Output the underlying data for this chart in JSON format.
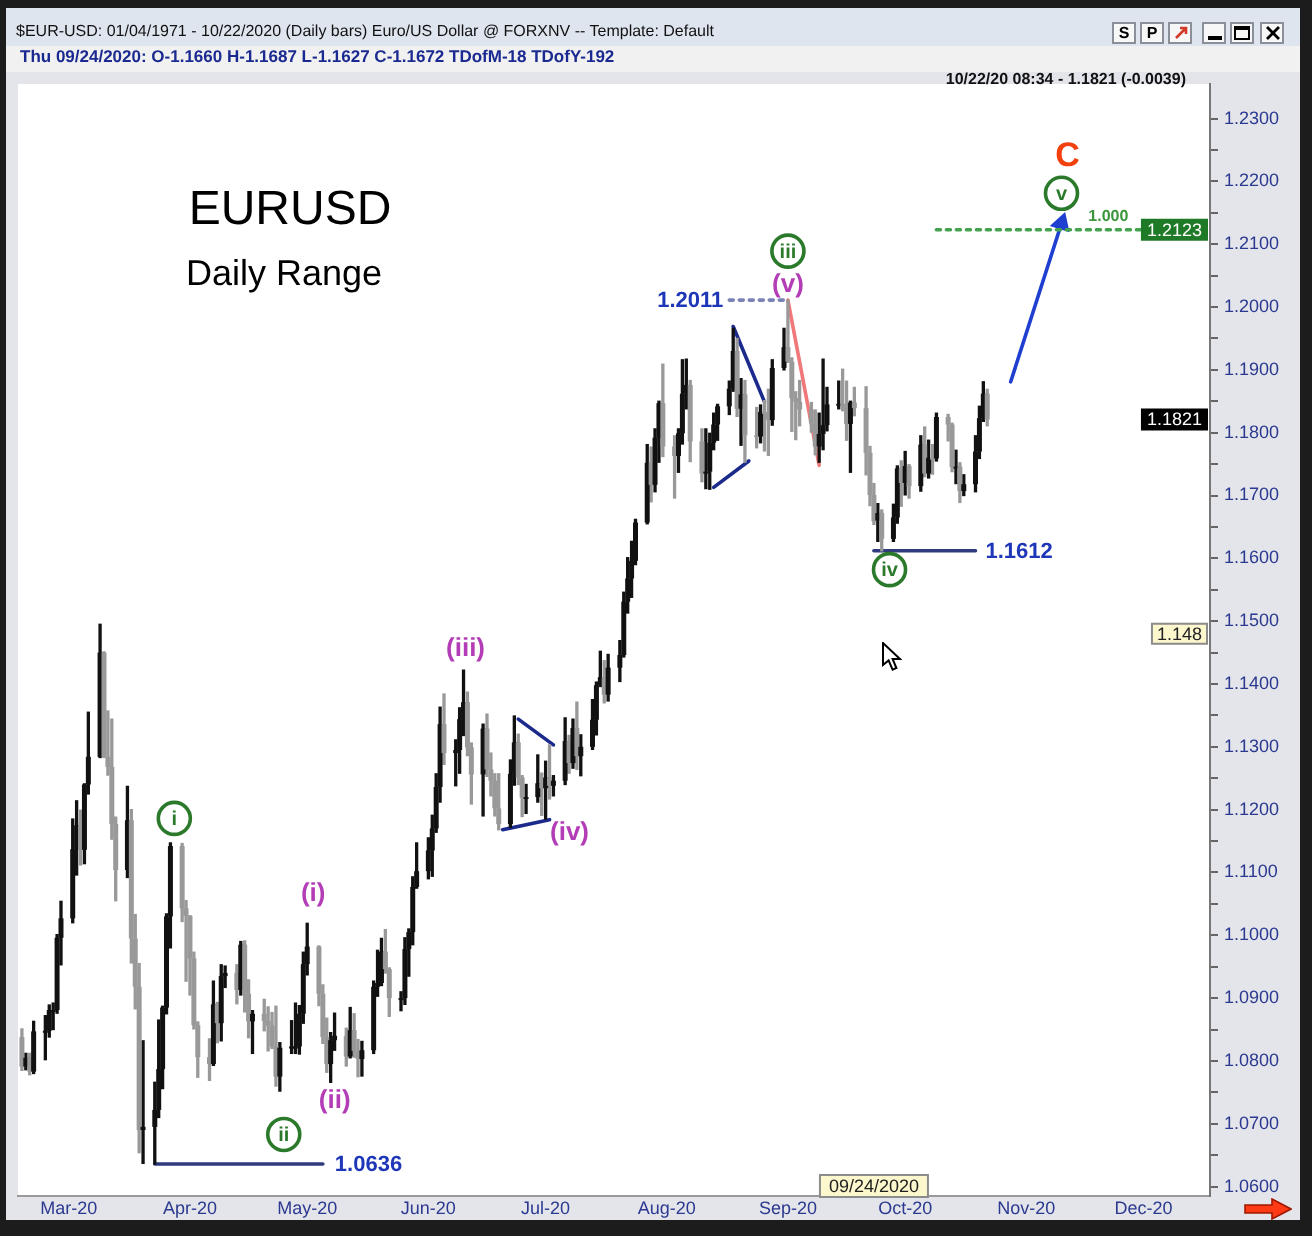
{
  "chart_data": {
    "type": "candlestick",
    "title": "EURUSD",
    "subtitle": "Daily Range",
    "x": [
      "2020-02-18",
      "2020-02-19",
      "2020-02-20",
      "2020-02-21",
      "2020-02-24",
      "2020-02-25",
      "2020-02-26",
      "2020-02-27",
      "2020-02-28",
      "2020-03-02",
      "2020-03-03",
      "2020-03-04",
      "2020-03-05",
      "2020-03-06",
      "2020-03-09",
      "2020-03-10",
      "2020-03-11",
      "2020-03-12",
      "2020-03-13",
      "2020-03-16",
      "2020-03-17",
      "2020-03-18",
      "2020-03-19",
      "2020-03-20",
      "2020-03-23",
      "2020-03-24",
      "2020-03-25",
      "2020-03-26",
      "2020-03-27",
      "2020-03-30",
      "2020-03-31",
      "2020-04-01",
      "2020-04-02",
      "2020-04-03",
      "2020-04-06",
      "2020-04-07",
      "2020-04-08",
      "2020-04-09",
      "2020-04-10",
      "2020-04-13",
      "2020-04-14",
      "2020-04-15",
      "2020-04-16",
      "2020-04-17",
      "2020-04-20",
      "2020-04-21",
      "2020-04-22",
      "2020-04-23",
      "2020-04-24",
      "2020-04-27",
      "2020-04-28",
      "2020-04-29",
      "2020-04-30",
      "2020-05-01",
      "2020-05-04",
      "2020-05-05",
      "2020-05-06",
      "2020-05-07",
      "2020-05-08",
      "2020-05-11",
      "2020-05-12",
      "2020-05-13",
      "2020-05-14",
      "2020-05-15",
      "2020-05-18",
      "2020-05-19",
      "2020-05-20",
      "2020-05-21",
      "2020-05-22",
      "2020-05-25",
      "2020-05-26",
      "2020-05-27",
      "2020-05-28",
      "2020-05-29",
      "2020-06-01",
      "2020-06-02",
      "2020-06-03",
      "2020-06-04",
      "2020-06-05",
      "2020-06-08",
      "2020-06-09",
      "2020-06-10",
      "2020-06-11",
      "2020-06-12",
      "2020-06-15",
      "2020-06-16",
      "2020-06-17",
      "2020-06-18",
      "2020-06-19",
      "2020-06-22",
      "2020-06-23",
      "2020-06-24",
      "2020-06-25",
      "2020-06-26",
      "2020-06-29",
      "2020-06-30",
      "2020-07-01",
      "2020-07-02",
      "2020-07-03",
      "2020-07-06",
      "2020-07-07",
      "2020-07-08",
      "2020-07-09",
      "2020-07-10",
      "2020-07-13",
      "2020-07-14",
      "2020-07-15",
      "2020-07-16",
      "2020-07-17",
      "2020-07-20",
      "2020-07-21",
      "2020-07-22",
      "2020-07-23",
      "2020-07-24",
      "2020-07-27",
      "2020-07-28",
      "2020-07-29",
      "2020-07-30",
      "2020-07-31",
      "2020-08-03",
      "2020-08-04",
      "2020-08-05",
      "2020-08-06",
      "2020-08-07",
      "2020-08-10",
      "2020-08-11",
      "2020-08-12",
      "2020-08-13",
      "2020-08-14",
      "2020-08-17",
      "2020-08-18",
      "2020-08-19",
      "2020-08-20",
      "2020-08-21",
      "2020-08-24",
      "2020-08-25",
      "2020-08-26",
      "2020-08-27",
      "2020-08-28",
      "2020-08-31",
      "2020-09-01",
      "2020-09-02",
      "2020-09-03",
      "2020-09-04",
      "2020-09-07",
      "2020-09-08",
      "2020-09-09",
      "2020-09-10",
      "2020-09-11",
      "2020-09-14",
      "2020-09-15",
      "2020-09-16",
      "2020-09-17",
      "2020-09-18",
      "2020-09-21",
      "2020-09-22",
      "2020-09-23",
      "2020-09-24",
      "2020-09-25",
      "2020-09-28",
      "2020-09-29",
      "2020-09-30",
      "2020-10-01",
      "2020-10-02",
      "2020-10-05",
      "2020-10-06",
      "2020-10-07",
      "2020-10-08",
      "2020-10-09",
      "2020-10-12",
      "2020-10-13",
      "2020-10-14",
      "2020-10-15",
      "2020-10-16",
      "2020-10-19",
      "2020-10-20",
      "2020-10-21",
      "2020-10-22"
    ],
    "ohlc": [
      [
        1.0838,
        1.0851,
        1.0785,
        1.0791
      ],
      [
        1.0791,
        1.0812,
        1.0786,
        1.0805
      ],
      [
        1.0805,
        1.0812,
        1.0778,
        1.0783
      ],
      [
        1.0783,
        1.0863,
        1.078,
        1.0847
      ],
      [
        1.0847,
        1.0872,
        1.0802,
        1.0848
      ],
      [
        1.0848,
        1.0889,
        1.0838,
        1.0881
      ],
      [
        1.0881,
        1.0892,
        1.085,
        1.0881
      ],
      [
        1.0881,
        1.1001,
        1.0876,
        1.0996
      ],
      [
        1.0996,
        1.1054,
        1.0953,
        1.1027
      ],
      [
        1.1027,
        1.1185,
        1.102,
        1.1137
      ],
      [
        1.1137,
        1.1214,
        1.1096,
        1.1175
      ],
      [
        1.1175,
        1.1199,
        1.1112,
        1.1136
      ],
      [
        1.1136,
        1.1241,
        1.1114,
        1.124
      ],
      [
        1.124,
        1.1355,
        1.1225,
        1.1284
      ],
      [
        1.1284,
        1.1495,
        1.1283,
        1.145
      ],
      [
        1.145,
        1.1451,
        1.1283,
        1.1284
      ],
      [
        1.1284,
        1.1357,
        1.1255,
        1.1268
      ],
      [
        1.1268,
        1.1344,
        1.1153,
        1.1177
      ],
      [
        1.1177,
        1.1188,
        1.1055,
        1.1104
      ],
      [
        1.1104,
        1.1237,
        1.1092,
        1.1183
      ],
      [
        1.1183,
        1.12,
        1.0956,
        1.0995
      ],
      [
        1.0995,
        1.1033,
        1.0883,
        1.0918
      ],
      [
        1.0918,
        1.0955,
        1.0654,
        1.069
      ],
      [
        1.069,
        1.0832,
        1.0637,
        1.0695
      ],
      [
        1.0695,
        1.0766,
        1.0636,
        1.0722
      ],
      [
        1.0722,
        1.0865,
        1.071,
        1.0787
      ],
      [
        1.0787,
        1.0887,
        1.0756,
        1.0885
      ],
      [
        1.0885,
        1.1034,
        1.0875,
        1.103
      ],
      [
        1.103,
        1.1147,
        1.098,
        1.1142
      ],
      [
        1.1142,
        1.1146,
        1.1022,
        1.1043
      ],
      [
        1.1043,
        1.1055,
        1.0927,
        1.1031
      ],
      [
        1.1031,
        1.1031,
        1.0905,
        1.0963
      ],
      [
        1.0963,
        1.0973,
        1.0851,
        1.0857
      ],
      [
        1.0857,
        1.0862,
        1.0774,
        1.0806
      ],
      [
        1.0806,
        1.0835,
        1.0769,
        1.0795
      ],
      [
        1.0795,
        1.0927,
        1.0793,
        1.089
      ],
      [
        1.089,
        1.0893,
        1.0829,
        1.086
      ],
      [
        1.086,
        1.0953,
        1.0832,
        1.0935
      ],
      [
        1.0935,
        1.0951,
        1.0917,
        1.094
      ],
      [
        1.094,
        1.0953,
        1.0891,
        1.0913
      ],
      [
        1.0913,
        1.099,
        1.0905,
        1.0985
      ],
      [
        1.0985,
        1.0991,
        1.0878,
        1.0907
      ],
      [
        1.0907,
        1.0929,
        1.0837,
        1.0863
      ],
      [
        1.0863,
        1.088,
        1.0812,
        1.0875
      ],
      [
        1.0875,
        1.0898,
        1.0848,
        1.0864
      ],
      [
        1.0864,
        1.0886,
        1.0816,
        1.0856
      ],
      [
        1.0856,
        1.0877,
        1.082,
        1.0823
      ],
      [
        1.0823,
        1.0887,
        1.076,
        1.0775
      ],
      [
        1.0775,
        1.0829,
        1.0752,
        1.0821
      ],
      [
        1.0821,
        1.0864,
        1.0812,
        1.0823
      ],
      [
        1.0823,
        1.0892,
        1.0812,
        1.0823
      ],
      [
        1.0823,
        1.0888,
        1.0811,
        1.0875
      ],
      [
        1.0875,
        1.0973,
        1.086,
        1.0954
      ],
      [
        1.0954,
        1.1019,
        1.0937,
        1.0982
      ],
      [
        1.0982,
        1.0983,
        1.0888,
        1.0907
      ],
      [
        1.0907,
        1.0921,
        1.0828,
        1.0838
      ],
      [
        1.0838,
        1.0868,
        1.0782,
        1.0795
      ],
      [
        1.0795,
        1.0845,
        1.0766,
        1.0833
      ],
      [
        1.0833,
        1.0876,
        1.0817,
        1.084
      ],
      [
        1.084,
        1.0852,
        1.0792,
        1.0807
      ],
      [
        1.0807,
        1.0885,
        1.0805,
        1.0849
      ],
      [
        1.0849,
        1.0875,
        1.0806,
        1.0816
      ],
      [
        1.0816,
        1.0834,
        1.0775,
        1.0803
      ],
      [
        1.0803,
        1.0831,
        1.0776,
        1.0817
      ],
      [
        1.0817,
        1.0927,
        1.0812,
        1.0918
      ],
      [
        1.0918,
        1.0976,
        1.0903,
        1.0924
      ],
      [
        1.0924,
        1.0995,
        1.092,
        1.0974
      ],
      [
        1.0974,
        1.1009,
        1.094,
        1.0946
      ],
      [
        1.0946,
        1.0948,
        1.0871,
        1.09
      ],
      [
        1.09,
        1.091,
        1.088,
        1.09
      ],
      [
        1.09,
        1.0996,
        1.089,
        1.0978
      ],
      [
        1.0978,
        1.101,
        1.0935,
        1.1005
      ],
      [
        1.1005,
        1.1093,
        1.0985,
        1.1077
      ],
      [
        1.1077,
        1.1147,
        1.1075,
        1.1102
      ],
      [
        1.1102,
        1.1155,
        1.109,
        1.1135
      ],
      [
        1.1135,
        1.1191,
        1.1094,
        1.117
      ],
      [
        1.117,
        1.1257,
        1.1164,
        1.1236
      ],
      [
        1.1236,
        1.1363,
        1.1212,
        1.1336
      ],
      [
        1.1336,
        1.1384,
        1.1272,
        1.129
      ],
      [
        1.129,
        1.1311,
        1.1238,
        1.1295
      ],
      [
        1.1295,
        1.1362,
        1.1258,
        1.1344
      ],
      [
        1.1344,
        1.1422,
        1.1318,
        1.1371
      ],
      [
        1.1371,
        1.1387,
        1.1286,
        1.1299
      ],
      [
        1.1299,
        1.1306,
        1.1209,
        1.1256
      ],
      [
        1.1256,
        1.1336,
        1.119,
        1.1329
      ],
      [
        1.1329,
        1.1352,
        1.1253,
        1.1264
      ],
      [
        1.1264,
        1.129,
        1.1222,
        1.1246
      ],
      [
        1.1246,
        1.1257,
        1.119,
        1.1202
      ],
      [
        1.1202,
        1.1257,
        1.1168,
        1.1177
      ],
      [
        1.1177,
        1.1279,
        1.1172,
        1.1257
      ],
      [
        1.1257,
        1.1349,
        1.1239,
        1.1307
      ],
      [
        1.1307,
        1.132,
        1.124,
        1.1251
      ],
      [
        1.1251,
        1.1254,
        1.1189,
        1.1219
      ],
      [
        1.1219,
        1.124,
        1.1194,
        1.122
      ],
      [
        1.122,
        1.1287,
        1.1212,
        1.1242
      ],
      [
        1.1242,
        1.1258,
        1.1191,
        1.1234
      ],
      [
        1.1234,
        1.1277,
        1.1185,
        1.1251
      ],
      [
        1.1251,
        1.1303,
        1.1217,
        1.1238
      ],
      [
        1.1238,
        1.1254,
        1.1222,
        1.1246
      ],
      [
        1.1246,
        1.1346,
        1.124,
        1.1309
      ],
      [
        1.1309,
        1.1318,
        1.1258,
        1.1274
      ],
      [
        1.1274,
        1.1344,
        1.1266,
        1.133
      ],
      [
        1.133,
        1.1371,
        1.1264,
        1.1285
      ],
      [
        1.1285,
        1.1319,
        1.1254,
        1.13
      ],
      [
        1.13,
        1.1375,
        1.1296,
        1.1343
      ],
      [
        1.1343,
        1.1403,
        1.1319,
        1.1398
      ],
      [
        1.1398,
        1.1452,
        1.1396,
        1.1411
      ],
      [
        1.1411,
        1.1437,
        1.137,
        1.1383
      ],
      [
        1.1383,
        1.1447,
        1.1373,
        1.1426
      ],
      [
        1.1426,
        1.1469,
        1.1404,
        1.1446
      ],
      [
        1.1446,
        1.1546,
        1.1443,
        1.1531
      ],
      [
        1.1531,
        1.1601,
        1.1513,
        1.1568
      ],
      [
        1.1568,
        1.1627,
        1.1538,
        1.1596
      ],
      [
        1.1596,
        1.1662,
        1.159,
        1.1657
      ],
      [
        1.1657,
        1.1781,
        1.1655,
        1.1752
      ],
      [
        1.1752,
        1.1777,
        1.169,
        1.1717
      ],
      [
        1.1717,
        1.1806,
        1.1706,
        1.1792
      ],
      [
        1.1792,
        1.185,
        1.1753,
        1.1847
      ],
      [
        1.1847,
        1.1909,
        1.1762,
        1.1778
      ],
      [
        1.1778,
        1.1795,
        1.1696,
        1.1763
      ],
      [
        1.1763,
        1.1806,
        1.1737,
        1.1799
      ],
      [
        1.1799,
        1.1916,
        1.1782,
        1.1862
      ],
      [
        1.1862,
        1.1917,
        1.1838,
        1.1876
      ],
      [
        1.1876,
        1.1883,
        1.1754,
        1.1786
      ],
      [
        1.1786,
        1.1806,
        1.1722,
        1.1735
      ],
      [
        1.1735,
        1.1806,
        1.1711,
        1.1738
      ],
      [
        1.1738,
        1.1799,
        1.171,
        1.1784
      ],
      [
        1.1784,
        1.1831,
        1.1773,
        1.1813
      ],
      [
        1.1813,
        1.1845,
        1.1788,
        1.1842
      ],
      [
        1.1842,
        1.1882,
        1.1829,
        1.187
      ],
      [
        1.187,
        1.1966,
        1.1866,
        1.193
      ],
      [
        1.193,
        1.195,
        1.1826,
        1.1838
      ],
      [
        1.1838,
        1.1886,
        1.178,
        1.1861
      ],
      [
        1.1861,
        1.1883,
        1.1753,
        1.1796
      ],
      [
        1.1796,
        1.184,
        1.1776,
        1.1794
      ],
      [
        1.1794,
        1.1844,
        1.1784,
        1.1833
      ],
      [
        1.1833,
        1.1851,
        1.1771,
        1.183
      ],
      [
        1.183,
        1.1869,
        1.1764,
        1.182
      ],
      [
        1.182,
        1.1916,
        1.1812,
        1.1903
      ],
      [
        1.1903,
        1.1966,
        1.19,
        1.1936
      ],
      [
        1.1936,
        1.2011,
        1.1912,
        1.1913
      ],
      [
        1.1913,
        1.1919,
        1.1802,
        1.1855
      ],
      [
        1.1855,
        1.1865,
        1.1789,
        1.1849
      ],
      [
        1.1849,
        1.1883,
        1.1811,
        1.1837
      ],
      [
        1.1837,
        1.1848,
        1.1801,
        1.1815
      ],
      [
        1.1815,
        1.1836,
        1.1765,
        1.1778
      ],
      [
        1.1778,
        1.1831,
        1.1753,
        1.1798
      ],
      [
        1.1798,
        1.1917,
        1.1773,
        1.1812
      ],
      [
        1.1812,
        1.1872,
        1.1803,
        1.1845
      ],
      [
        1.1845,
        1.1882,
        1.1838,
        1.1846
      ],
      [
        1.1846,
        1.1901,
        1.1835,
        1.1845
      ],
      [
        1.1845,
        1.1882,
        1.1788,
        1.1814
      ],
      [
        1.1814,
        1.185,
        1.1737,
        1.1848
      ],
      [
        1.1848,
        1.1872,
        1.1827,
        1.1839
      ],
      [
        1.1839,
        1.1873,
        1.1733,
        1.1768
      ],
      [
        1.1768,
        1.1778,
        1.1684,
        1.1701
      ],
      [
        1.1701,
        1.1719,
        1.1654,
        1.1659
      ],
      [
        1.166,
        1.1687,
        1.1627,
        1.1672
      ],
      [
        1.1672,
        1.1677,
        1.1612,
        1.1631
      ],
      [
        1.1631,
        1.1686,
        1.1627,
        1.1665
      ],
      [
        1.1665,
        1.1747,
        1.1656,
        1.1743
      ],
      [
        1.1743,
        1.1755,
        1.1683,
        1.172
      ],
      [
        1.172,
        1.177,
        1.1701,
        1.1747
      ],
      [
        1.1747,
        1.1749,
        1.1696,
        1.1715
      ],
      [
        1.1715,
        1.1795,
        1.1707,
        1.1781
      ],
      [
        1.1781,
        1.1809,
        1.173,
        1.1735
      ],
      [
        1.1735,
        1.1788,
        1.1728,
        1.176
      ],
      [
        1.176,
        1.1781,
        1.1734,
        1.1759
      ],
      [
        1.1759,
        1.1831,
        1.1755,
        1.1825
      ],
      [
        1.1825,
        1.1829,
        1.1787,
        1.1813
      ],
      [
        1.1813,
        1.1815,
        1.1738,
        1.1745
      ],
      [
        1.1745,
        1.1772,
        1.1719,
        1.1746
      ],
      [
        1.1746,
        1.1752,
        1.1689,
        1.1707
      ],
      [
        1.1707,
        1.1733,
        1.17,
        1.1718
      ],
      [
        1.1718,
        1.1795,
        1.1706,
        1.177
      ],
      [
        1.177,
        1.1842,
        1.1759,
        1.1823
      ],
      [
        1.1823,
        1.1881,
        1.1818,
        1.1862
      ],
      [
        1.1862,
        1.1869,
        1.1811,
        1.1821
      ]
    ],
    "colors": [
      "#999999",
      "#111111",
      "#999999",
      "#111111",
      "#111111",
      "#111111",
      "#111111",
      "#111111",
      "#111111",
      "#111111",
      "#111111",
      "#999999",
      "#111111",
      "#111111",
      "#111111",
      "#999999",
      "#999999",
      "#999999",
      "#999999",
      "#111111",
      "#999999",
      "#999999",
      "#999999",
      "#111111",
      "#111111",
      "#111111",
      "#111111",
      "#111111",
      "#111111",
      "#999999",
      "#999999",
      "#999999",
      "#999999",
      "#999999",
      "#999999",
      "#111111",
      "#999999",
      "#111111",
      "#111111",
      "#999999",
      "#111111",
      "#999999",
      "#999999",
      "#111111",
      "#999999",
      "#999999",
      "#999999",
      "#999999",
      "#111111",
      "#111111",
      "#111111",
      "#111111",
      "#111111",
      "#111111",
      "#999999",
      "#999999",
      "#999999",
      "#111111",
      "#111111",
      "#999999",
      "#111111",
      "#999999",
      "#999999",
      "#111111",
      "#111111",
      "#111111",
      "#111111",
      "#999999",
      "#999999",
      "#111111",
      "#111111",
      "#111111",
      "#111111",
      "#111111",
      "#111111",
      "#111111",
      "#111111",
      "#111111",
      "#999999",
      "#111111",
      "#111111",
      "#111111",
      "#999999",
      "#999999",
      "#111111",
      "#999999",
      "#999999",
      "#999999",
      "#999999",
      "#111111",
      "#111111",
      "#999999",
      "#999999",
      "#111111",
      "#111111",
      "#999999",
      "#111111",
      "#999999",
      "#111111",
      "#111111",
      "#999999",
      "#111111",
      "#999999",
      "#111111",
      "#111111",
      "#111111",
      "#111111",
      "#999999",
      "#111111",
      "#111111",
      "#111111",
      "#111111",
      "#111111",
      "#111111",
      "#111111",
      "#999999",
      "#111111",
      "#111111",
      "#999999",
      "#999999",
      "#111111",
      "#111111",
      "#111111",
      "#999999",
      "#999999",
      "#111111",
      "#111111",
      "#111111",
      "#111111",
      "#111111",
      "#111111",
      "#999999",
      "#111111",
      "#999999",
      "#999999",
      "#111111",
      "#999999",
      "#999999",
      "#111111",
      "#111111",
      "#999999",
      "#999999",
      "#999999",
      "#999999",
      "#999999",
      "#999999",
      "#111111",
      "#111111",
      "#111111",
      "#111111",
      "#999999",
      "#999999",
      "#111111",
      "#999999",
      "#999999",
      "#999999",
      "#999999",
      "#111111",
      "#999999",
      "#111111",
      "#111111",
      "#999999",
      "#111111",
      "#999999",
      "#111111",
      "#999999",
      "#111111",
      "#999999",
      "#111111",
      "#999999",
      "#999999",
      "#111111",
      "#999999",
      "#111111",
      "#111111",
      "#111111",
      "#111111",
      "#999999"
    ],
    "series": [
      {
        "type": "line",
        "x": [
          "2020-03-23",
          "2020-05-05"
        ],
        "values": [
          1.0636,
          1.0636
        ],
        "color": "#2f3b7e",
        "line_style": "solid"
      },
      {
        "type": "line",
        "x": [
          "2020-08-17",
          "2020-09-01"
        ],
        "values": [
          1.2011,
          1.2011
        ],
        "color": "#7b82b5",
        "line_style": "dotted"
      },
      {
        "type": "line",
        "x": [
          "2020-09-23",
          "2020-10-19"
        ],
        "values": [
          1.1612,
          1.1612
        ],
        "color": "#2f3b7e",
        "line_style": "solid"
      },
      {
        "type": "line",
        "x": [
          "2020-10-09",
          "2020-12-02"
        ],
        "values": [
          1.2123,
          1.2123
        ],
        "color": "#45a34f",
        "line_style": "dotted"
      },
      {
        "type": "line",
        "x": [
          "2020-09-01",
          "2020-09-09"
        ],
        "values": [
          1.2011,
          1.1748
        ],
        "color": "#f07878",
        "line_style": "solid"
      },
      {
        "type": "line",
        "x": [
          "2020-06-24",
          "2020-07-03"
        ],
        "values": [
          1.1344,
          1.1303
        ],
        "color": "#1c2a8c",
        "line_style": "solid"
      },
      {
        "type": "line",
        "x": [
          "2020-06-20",
          "2020-07-02"
        ],
        "values": [
          1.1168,
          1.1184
        ],
        "color": "#1c2a8c",
        "line_style": "solid"
      },
      {
        "type": "line",
        "x": [
          "2020-08-18",
          "2020-08-26"
        ],
        "values": [
          1.1969,
          1.1849
        ],
        "color": "#1c2a8c",
        "line_style": "solid"
      },
      {
        "type": "line",
        "x": [
          "2020-08-13",
          "2020-08-22"
        ],
        "values": [
          1.1713,
          1.1755
        ],
        "color": "#1c2a8c",
        "line_style": "solid"
      },
      {
        "type": "line",
        "x": [
          "2020-10-28",
          "2020-11-10"
        ],
        "values": [
          1.1881,
          1.2133
        ],
        "color": "#1f3fd0",
        "line_style": "solid",
        "marker": "triangle"
      }
    ],
    "xlim": [
      "2020-02-17",
      "2020-12-18"
    ],
    "xticks": [
      {
        "value": "2020-03-01",
        "label": "Mar-20"
      },
      {
        "value": "2020-04-01",
        "label": "Apr-20"
      },
      {
        "value": "2020-05-01",
        "label": "May-20"
      },
      {
        "value": "2020-06-01",
        "label": "Jun-20"
      },
      {
        "value": "2020-07-01",
        "label": "Jul-20"
      },
      {
        "value": "2020-08-01",
        "label": "Aug-20"
      },
      {
        "value": "2020-09-01",
        "label": "Sep-20"
      },
      {
        "value": "2020-10-01",
        "label": "Oct-20"
      },
      {
        "value": "2020-11-01",
        "label": "Nov-20"
      },
      {
        "value": "2020-12-01",
        "label": "Dec-20"
      }
    ],
    "ylim": [
      1.0585,
      1.2355
    ],
    "yticks": [
      {
        "value": 1.06,
        "label": "1.0600"
      },
      {
        "value": 1.065,
        "label": null
      },
      {
        "value": 1.07,
        "label": "1.0700"
      },
      {
        "value": 1.075,
        "label": null
      },
      {
        "value": 1.08,
        "label": "1.0800"
      },
      {
        "value": 1.085,
        "label": null
      },
      {
        "value": 1.09,
        "label": "1.0900"
      },
      {
        "value": 1.095,
        "label": null
      },
      {
        "value": 1.1,
        "label": "1.1000"
      },
      {
        "value": 1.105,
        "label": null
      },
      {
        "value": 1.11,
        "label": "1.1100"
      },
      {
        "value": 1.115,
        "label": null
      },
      {
        "value": 1.12,
        "label": "1.1200"
      },
      {
        "value": 1.125,
        "label": null
      },
      {
        "value": 1.13,
        "label": "1.1300"
      },
      {
        "value": 1.135,
        "label": null
      },
      {
        "value": 1.14,
        "label": "1.1400"
      },
      {
        "value": 1.145,
        "label": null
      },
      {
        "value": 1.15,
        "label": "1.1500"
      },
      {
        "value": 1.155,
        "label": null
      },
      {
        "value": 1.16,
        "label": "1.1600"
      },
      {
        "value": 1.165,
        "label": null
      },
      {
        "value": 1.17,
        "label": "1.1700"
      },
      {
        "value": 1.175,
        "label": null
      },
      {
        "value": 1.18,
        "label": "1.1800"
      },
      {
        "value": 1.185,
        "label": null
      },
      {
        "value": 1.19,
        "label": "1.1900"
      },
      {
        "value": 1.195,
        "label": null
      },
      {
        "value": 1.2,
        "label": "1.2000"
      },
      {
        "value": 1.205,
        "label": null
      },
      {
        "value": 1.21,
        "label": "1.2100"
      },
      {
        "value": 1.215,
        "label": null
      },
      {
        "value": 1.22,
        "label": "1.2200"
      },
      {
        "value": 1.225,
        "label": null
      },
      {
        "value": 1.23,
        "label": "1.2300"
      }
    ],
    "annotations": [
      "$EUR-USD: 01/04/1971 - 10/22/2020 (Daily bars) Euro/US Dollar @ FORXNV -- Template: Default",
      "Thu 09/24/2020: O-1.1660 H-1.1687 L-1.1627 C-1.1672 TDofM-18 TDofY-192",
      "10/22/20 08:34 - 1.1821 (-0.0039)",
      "S",
      "P",
      "09/24/2020",
      {
        "text": "i",
        "x": "2020-03-28",
        "y": 1.1186
      },
      {
        "text": "ii",
        "x": "2020-04-25",
        "y": 1.0683
      },
      {
        "text": "(i)",
        "x": "2020-05-01",
        "y": 1.1019
      },
      {
        "text": "(ii)",
        "x": "2020-05-07",
        "y": 1.0766
      },
      {
        "text": "(iii)",
        "x": "2020-06-10",
        "y": 1.1422
      },
      {
        "text": "(iv)",
        "x": "2020-07-02",
        "y": 1.1184
      },
      {
        "text": "iii",
        "x": "2020-09-01",
        "y": 1.2089
      },
      {
        "text": "(v)",
        "x": "2020-09-01",
        "y": 1.2011
      },
      {
        "text": "iv",
        "x": "2020-09-27",
        "y": 1.1582
      },
      {
        "text": "v",
        "x": "2020-11-10",
        "y": 1.2181
      },
      {
        "text": "C",
        "x": "2020-11-10",
        "y": 1.2133
      },
      {
        "text": "1.0636",
        "x": "2020-05-05",
        "y": 1.0636
      },
      {
        "text": "1.2011",
        "x": "2020-08-17",
        "y": 1.2011
      },
      {
        "text": "1.1612",
        "x": "2020-10-19",
        "y": 1.1612
      },
      {
        "text": "1.000",
        "x": "2020-11-22",
        "y": 1.2123
      },
      {
        "text": "1.2123",
        "y": 1.2123
      },
      {
        "text": "1.1821",
        "y": 1.1821
      },
      {
        "text": "1.148",
        "y": 1.148
      }
    ]
  }
}
